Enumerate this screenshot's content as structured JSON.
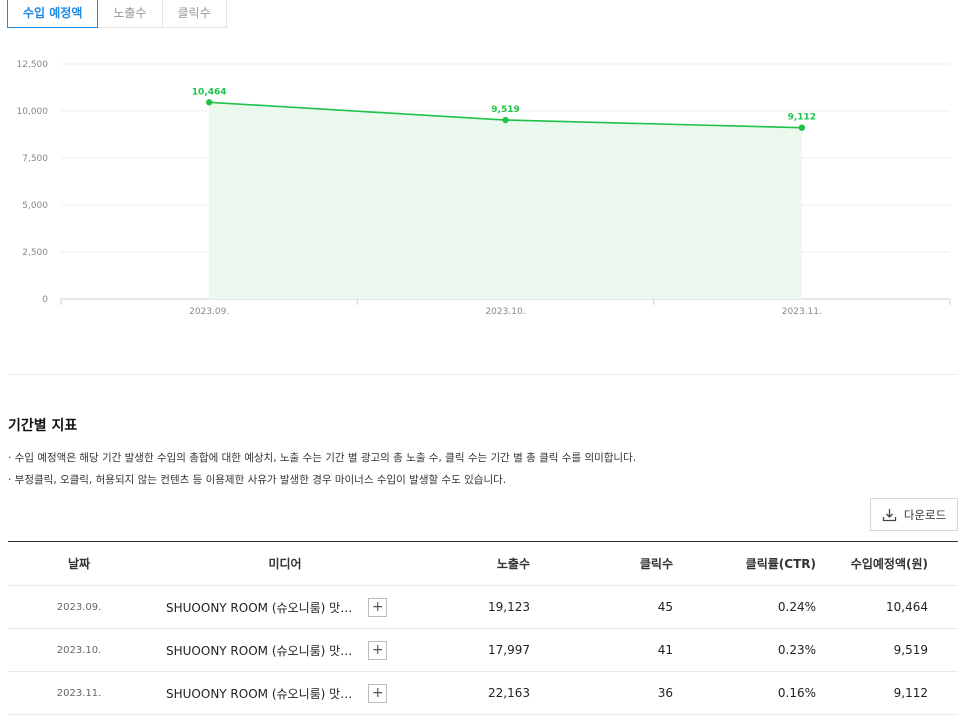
{
  "tabs": [
    {
      "label": "수입 예정액",
      "active": true
    },
    {
      "label": "노출수",
      "active": false
    },
    {
      "label": "클릭수",
      "active": false
    }
  ],
  "colors": {
    "accent": "#1e88e5",
    "series": "#1fc24a",
    "area": "#eaf8ee"
  },
  "chart_data": {
    "type": "area",
    "categories": [
      "2023.09.",
      "2023.10.",
      "2023.11."
    ],
    "values": [
      10464,
      9519,
      9112
    ],
    "data_labels": [
      "10,464",
      "9,519",
      "9,112"
    ],
    "y_ticks": [
      "12,500",
      "10,000",
      "7,500",
      "5,000",
      "2,500",
      "0"
    ],
    "ylim": [
      0,
      12500
    ],
    "grid": true,
    "title": "",
    "xlabel": "",
    "ylabel": ""
  },
  "section": {
    "title": "기간별 지표",
    "notes": [
      "· 수입 예정액은 해당 기간 발생한 수입의 총합에 대한 예상치, 노출 수는 기간 별 광고의 총 노출 수, 클릭 수는 기간 별 총 클릭 수를 의미합니다.",
      "· 부정클릭, 오클릭, 허용되지 않는 컨텐츠 등 이용제한 사유가 발생한 경우 마이너스 수입이 발생할 수도 있습니다."
    ],
    "download_label": "다운로드",
    "download_icon": "download-icon"
  },
  "table": {
    "headers": {
      "date": "날짜",
      "media": "미디어",
      "impressions": "노출수",
      "clicks": "클릭수",
      "ctr": "클릭률(CTR)",
      "revenue": "수입예정액(원)"
    },
    "rows": [
      {
        "date": "2023.09.",
        "media": "SHUOONY ROOM (슈오니룸) 맛…",
        "impressions": "19,123",
        "clicks": "45",
        "ctr": "0.24%",
        "revenue": "10,464",
        "expand": "+"
      },
      {
        "date": "2023.10.",
        "media": "SHUOONY ROOM (슈오니룸) 맛…",
        "impressions": "17,997",
        "clicks": "41",
        "ctr": "0.23%",
        "revenue": "9,519",
        "expand": "+"
      },
      {
        "date": "2023.11.",
        "media": "SHUOONY ROOM (슈오니룸) 맛…",
        "impressions": "22,163",
        "clicks": "36",
        "ctr": "0.16%",
        "revenue": "9,112",
        "expand": "+"
      }
    ]
  }
}
